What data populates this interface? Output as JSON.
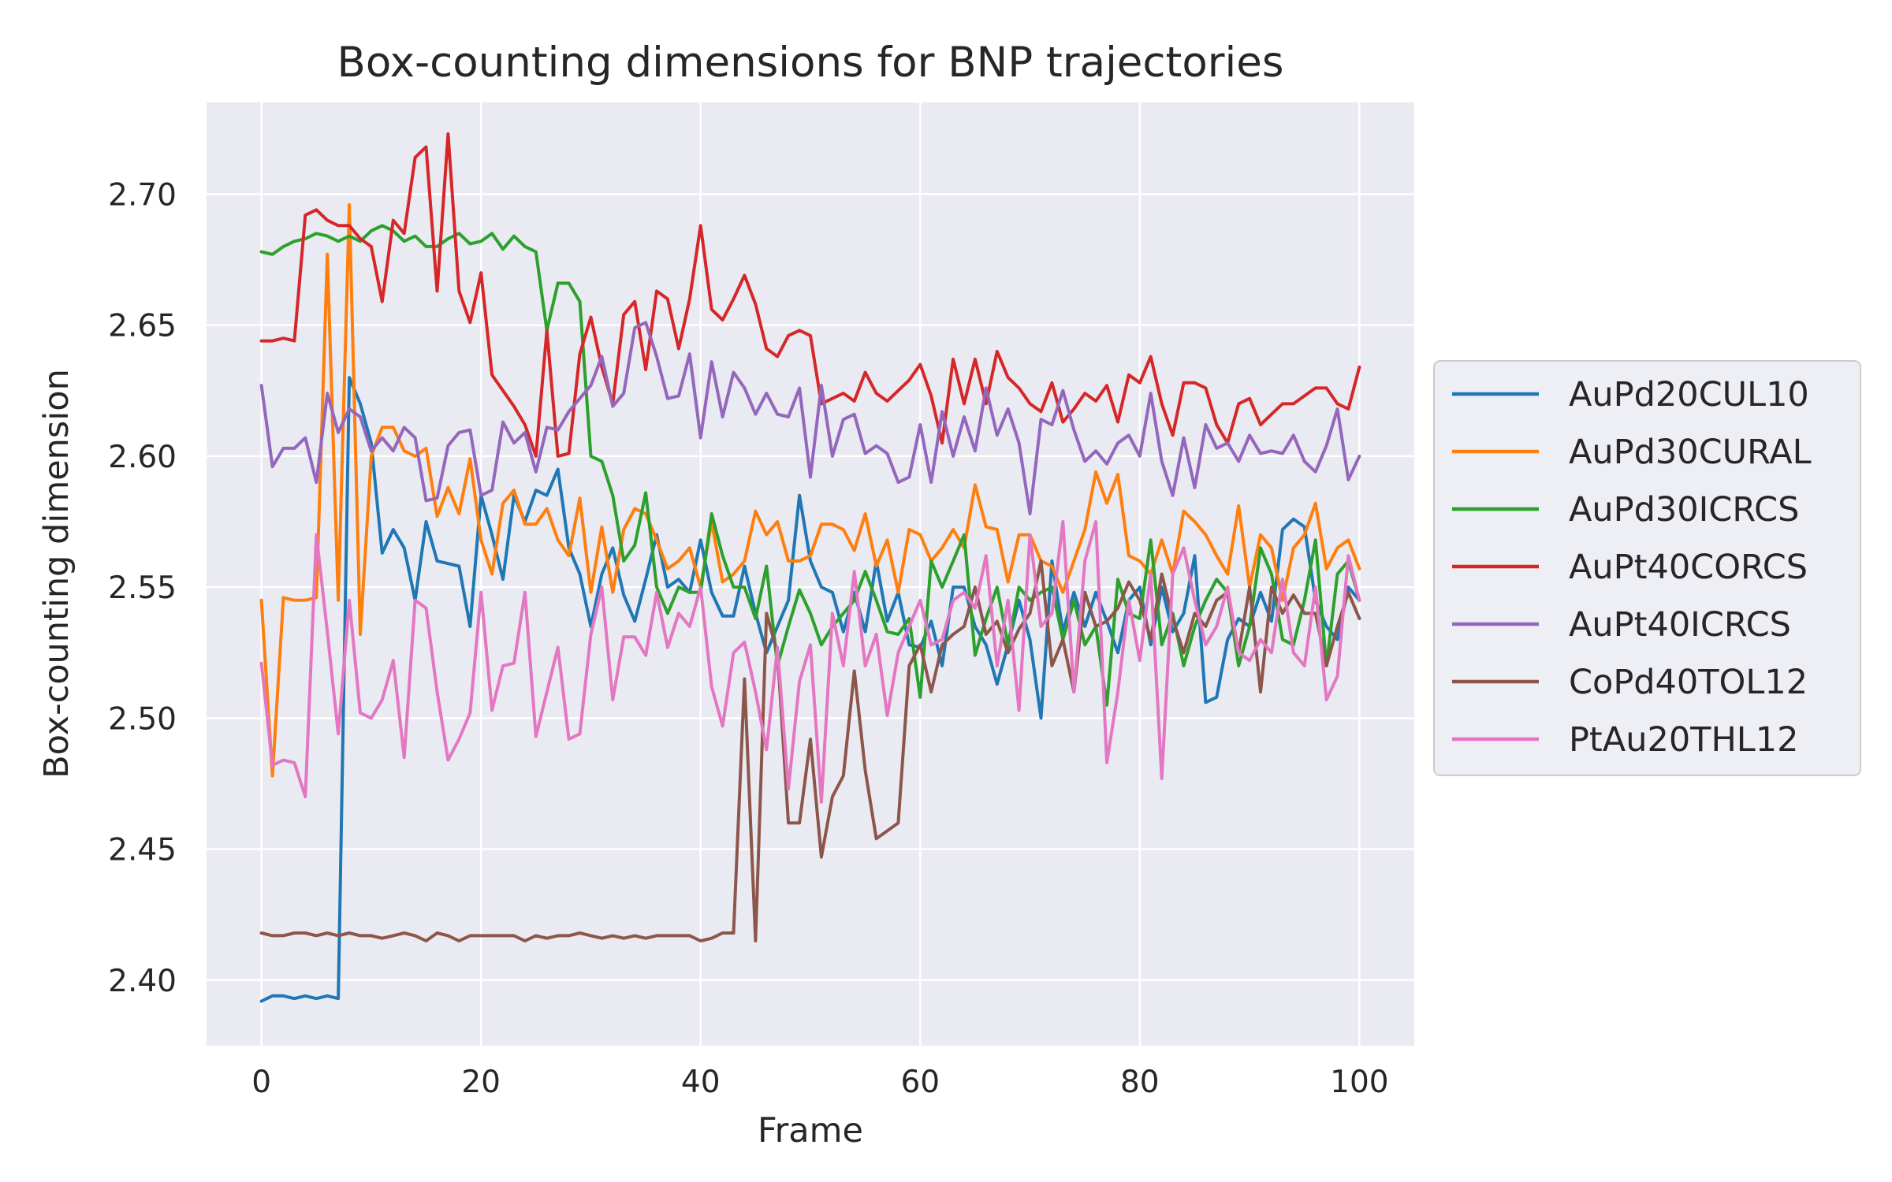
{
  "chart_data": {
    "type": "line",
    "title": "Box-counting dimensions for BNP trajectories",
    "xlabel": "Frame",
    "ylabel": "Box-counting dimension",
    "xlim": [
      -5,
      105
    ],
    "ylim": [
      2.375,
      2.735
    ],
    "xticks": [
      0,
      20,
      40,
      60,
      80,
      100
    ],
    "yticks": [
      2.4,
      2.45,
      2.5,
      2.55,
      2.6,
      2.65,
      2.7
    ],
    "xtick_labels": [
      "0",
      "20",
      "40",
      "60",
      "80",
      "100"
    ],
    "ytick_labels": [
      "2.40",
      "2.45",
      "2.50",
      "2.55",
      "2.60",
      "2.65",
      "2.70"
    ],
    "grid": true,
    "legend_position": "center-right-outside",
    "colors": {
      "plot_background": "#eaeaf2",
      "grid": "#ffffff",
      "text": "#262626",
      "legend_border": "#cccccc"
    },
    "series": [
      {
        "name": "AuPd20CUL10",
        "color": "#1f77b4",
        "values": [
          2.392,
          2.394,
          2.394,
          2.393,
          2.394,
          2.393,
          2.394,
          2.393,
          2.63,
          2.62,
          2.605,
          2.563,
          2.572,
          2.565,
          2.545,
          2.575,
          2.56,
          2.559,
          2.558,
          2.535,
          2.585,
          2.57,
          2.553,
          2.585,
          2.575,
          2.587,
          2.585,
          2.595,
          2.565,
          2.555,
          2.535,
          2.555,
          2.565,
          2.547,
          2.537,
          2.553,
          2.57,
          2.55,
          2.553,
          2.548,
          2.568,
          2.548,
          2.539,
          2.539,
          2.558,
          2.54,
          2.525,
          2.535,
          2.545,
          2.585,
          2.56,
          2.55,
          2.548,
          2.533,
          2.548,
          2.533,
          2.56,
          2.537,
          2.548,
          2.528,
          2.527,
          2.537,
          2.52,
          2.55,
          2.55,
          2.535,
          2.528,
          2.513,
          2.528,
          2.545,
          2.53,
          2.5,
          2.56,
          2.533,
          2.548,
          2.535,
          2.548,
          2.537,
          2.525,
          2.545,
          2.55,
          2.528,
          2.55,
          2.533,
          2.54,
          2.562,
          2.506,
          2.508,
          2.53,
          2.538,
          2.535,
          2.548,
          2.537,
          2.572,
          2.576,
          2.573,
          2.545,
          2.535,
          2.53,
          2.55,
          2.545
        ]
      },
      {
        "name": "AuPd30CURAL",
        "color": "#ff7f0e",
        "values": [
          2.545,
          2.478,
          2.546,
          2.545,
          2.545,
          2.546,
          2.677,
          2.545,
          2.696,
          2.532,
          2.6,
          2.611,
          2.611,
          2.602,
          2.6,
          2.603,
          2.577,
          2.588,
          2.578,
          2.599,
          2.568,
          2.555,
          2.582,
          2.587,
          2.574,
          2.574,
          2.58,
          2.568,
          2.562,
          2.584,
          2.548,
          2.573,
          2.548,
          2.572,
          2.58,
          2.578,
          2.568,
          2.557,
          2.56,
          2.565,
          2.55,
          2.575,
          2.552,
          2.555,
          2.56,
          2.579,
          2.57,
          2.575,
          2.56,
          2.56,
          2.562,
          2.574,
          2.574,
          2.572,
          2.564,
          2.578,
          2.558,
          2.568,
          2.548,
          2.572,
          2.57,
          2.56,
          2.565,
          2.572,
          2.565,
          2.589,
          2.573,
          2.572,
          2.552,
          2.57,
          2.57,
          2.56,
          2.558,
          2.548,
          2.56,
          2.572,
          2.594,
          2.582,
          2.593,
          2.562,
          2.56,
          2.555,
          2.568,
          2.555,
          2.579,
          2.575,
          2.57,
          2.562,
          2.555,
          2.581,
          2.55,
          2.57,
          2.565,
          2.545,
          2.565,
          2.57,
          2.582,
          2.557,
          2.565,
          2.568,
          2.557
        ]
      },
      {
        "name": "AuPd30ICRCS",
        "color": "#2ca02c",
        "values": [
          2.678,
          2.677,
          2.68,
          2.682,
          2.683,
          2.685,
          2.684,
          2.682,
          2.684,
          2.682,
          2.686,
          2.688,
          2.686,
          2.682,
          2.684,
          2.68,
          2.68,
          2.683,
          2.685,
          2.681,
          2.682,
          2.685,
          2.679,
          2.684,
          2.68,
          2.678,
          2.648,
          2.666,
          2.666,
          2.659,
          2.6,
          2.598,
          2.585,
          2.56,
          2.566,
          2.586,
          2.55,
          2.54,
          2.55,
          2.548,
          2.548,
          2.578,
          2.562,
          2.55,
          2.55,
          2.538,
          2.558,
          2.52,
          2.535,
          2.549,
          2.54,
          2.528,
          2.535,
          2.54,
          2.545,
          2.556,
          2.545,
          2.533,
          2.532,
          2.538,
          2.508,
          2.56,
          2.55,
          2.56,
          2.57,
          2.524,
          2.538,
          2.55,
          2.528,
          2.55,
          2.545,
          2.548,
          2.55,
          2.53,
          2.545,
          2.528,
          2.535,
          2.505,
          2.553,
          2.54,
          2.538,
          2.568,
          2.528,
          2.54,
          2.52,
          2.535,
          2.545,
          2.553,
          2.548,
          2.52,
          2.535,
          2.565,
          2.555,
          2.53,
          2.528,
          2.545,
          2.568,
          2.52,
          2.555,
          2.56,
          2.545
        ]
      },
      {
        "name": "AuPt40CORCS",
        "color": "#d62728",
        "values": [
          2.644,
          2.644,
          2.645,
          2.644,
          2.692,
          2.694,
          2.69,
          2.688,
          2.688,
          2.683,
          2.68,
          2.659,
          2.69,
          2.685,
          2.714,
          2.718,
          2.663,
          2.723,
          2.663,
          2.651,
          2.67,
          2.631,
          2.625,
          2.619,
          2.612,
          2.6,
          2.648,
          2.6,
          2.601,
          2.639,
          2.653,
          2.634,
          2.62,
          2.654,
          2.659,
          2.633,
          2.663,
          2.66,
          2.641,
          2.66,
          2.688,
          2.656,
          2.652,
          2.66,
          2.669,
          2.658,
          2.641,
          2.638,
          2.646,
          2.648,
          2.646,
          2.62,
          2.622,
          2.624,
          2.621,
          2.632,
          2.624,
          2.621,
          2.625,
          2.629,
          2.635,
          2.623,
          2.605,
          2.637,
          2.62,
          2.637,
          2.62,
          2.64,
          2.63,
          2.626,
          2.62,
          2.617,
          2.628,
          2.613,
          2.618,
          2.624,
          2.621,
          2.627,
          2.613,
          2.631,
          2.628,
          2.638,
          2.62,
          2.608,
          2.628,
          2.628,
          2.626,
          2.612,
          2.605,
          2.62,
          2.622,
          2.612,
          2.616,
          2.62,
          2.62,
          2.623,
          2.626,
          2.626,
          2.62,
          2.618,
          2.634
        ]
      },
      {
        "name": "AuPt40ICRCS",
        "color": "#9467bd",
        "values": [
          2.627,
          2.596,
          2.603,
          2.603,
          2.607,
          2.59,
          2.624,
          2.609,
          2.618,
          2.615,
          2.602,
          2.607,
          2.602,
          2.611,
          2.607,
          2.583,
          2.584,
          2.604,
          2.609,
          2.61,
          2.585,
          2.587,
          2.613,
          2.605,
          2.609,
          2.594,
          2.611,
          2.61,
          2.617,
          2.622,
          2.627,
          2.638,
          2.619,
          2.624,
          2.649,
          2.651,
          2.638,
          2.622,
          2.623,
          2.639,
          2.607,
          2.636,
          2.615,
          2.632,
          2.626,
          2.616,
          2.624,
          2.616,
          2.615,
          2.626,
          2.592,
          2.627,
          2.6,
          2.614,
          2.616,
          2.601,
          2.604,
          2.601,
          2.59,
          2.592,
          2.612,
          2.59,
          2.617,
          2.6,
          2.615,
          2.602,
          2.626,
          2.608,
          2.618,
          2.605,
          2.578,
          2.614,
          2.612,
          2.625,
          2.61,
          2.598,
          2.602,
          2.597,
          2.605,
          2.608,
          2.6,
          2.624,
          2.598,
          2.585,
          2.607,
          2.588,
          2.612,
          2.603,
          2.605,
          2.598,
          2.608,
          2.601,
          2.602,
          2.601,
          2.608,
          2.598,
          2.594,
          2.604,
          2.618,
          2.591,
          2.6
        ]
      },
      {
        "name": "CoPd40TOL12",
        "color": "#8c564b",
        "values": [
          2.418,
          2.417,
          2.417,
          2.418,
          2.418,
          2.417,
          2.418,
          2.417,
          2.418,
          2.417,
          2.417,
          2.416,
          2.417,
          2.418,
          2.417,
          2.415,
          2.418,
          2.417,
          2.415,
          2.417,
          2.417,
          2.417,
          2.417,
          2.417,
          2.415,
          2.417,
          2.416,
          2.417,
          2.417,
          2.418,
          2.417,
          2.416,
          2.417,
          2.416,
          2.417,
          2.416,
          2.417,
          2.417,
          2.417,
          2.417,
          2.415,
          2.416,
          2.418,
          2.418,
          2.515,
          2.415,
          2.54,
          2.525,
          2.46,
          2.46,
          2.492,
          2.447,
          2.47,
          2.478,
          2.518,
          2.48,
          2.454,
          2.457,
          2.46,
          2.52,
          2.528,
          2.51,
          2.528,
          2.532,
          2.535,
          2.55,
          2.532,
          2.537,
          2.525,
          2.534,
          2.54,
          2.56,
          2.52,
          2.53,
          2.51,
          2.548,
          2.535,
          2.537,
          2.542,
          2.552,
          2.545,
          2.53,
          2.555,
          2.538,
          2.525,
          2.54,
          2.535,
          2.545,
          2.548,
          2.525,
          2.55,
          2.51,
          2.55,
          2.54,
          2.547,
          2.54,
          2.54,
          2.52,
          2.535,
          2.548,
          2.538
        ]
      },
      {
        "name": "PtAu20THL12",
        "color": "#e377c2",
        "values": [
          2.521,
          2.482,
          2.484,
          2.483,
          2.47,
          2.57,
          2.533,
          2.494,
          2.545,
          2.502,
          2.5,
          2.507,
          2.522,
          2.485,
          2.545,
          2.542,
          2.51,
          2.484,
          2.492,
          2.502,
          2.548,
          2.503,
          2.52,
          2.521,
          2.548,
          2.493,
          2.51,
          2.527,
          2.492,
          2.494,
          2.532,
          2.55,
          2.507,
          2.531,
          2.531,
          2.524,
          2.548,
          2.527,
          2.54,
          2.535,
          2.55,
          2.512,
          2.497,
          2.525,
          2.529,
          2.51,
          2.488,
          2.527,
          2.473,
          2.514,
          2.528,
          2.468,
          2.54,
          2.52,
          2.556,
          2.52,
          2.532,
          2.501,
          2.525,
          2.535,
          2.545,
          2.528,
          2.53,
          2.545,
          2.548,
          2.542,
          2.562,
          2.52,
          2.545,
          2.503,
          2.57,
          2.535,
          2.54,
          2.575,
          2.51,
          2.56,
          2.575,
          2.483,
          2.51,
          2.545,
          2.522,
          2.555,
          2.477,
          2.555,
          2.565,
          2.545,
          2.528,
          2.535,
          2.55,
          2.525,
          2.522,
          2.53,
          2.525,
          2.553,
          2.525,
          2.52,
          2.55,
          2.507,
          2.516,
          2.562,
          2.545
        ]
      }
    ]
  }
}
